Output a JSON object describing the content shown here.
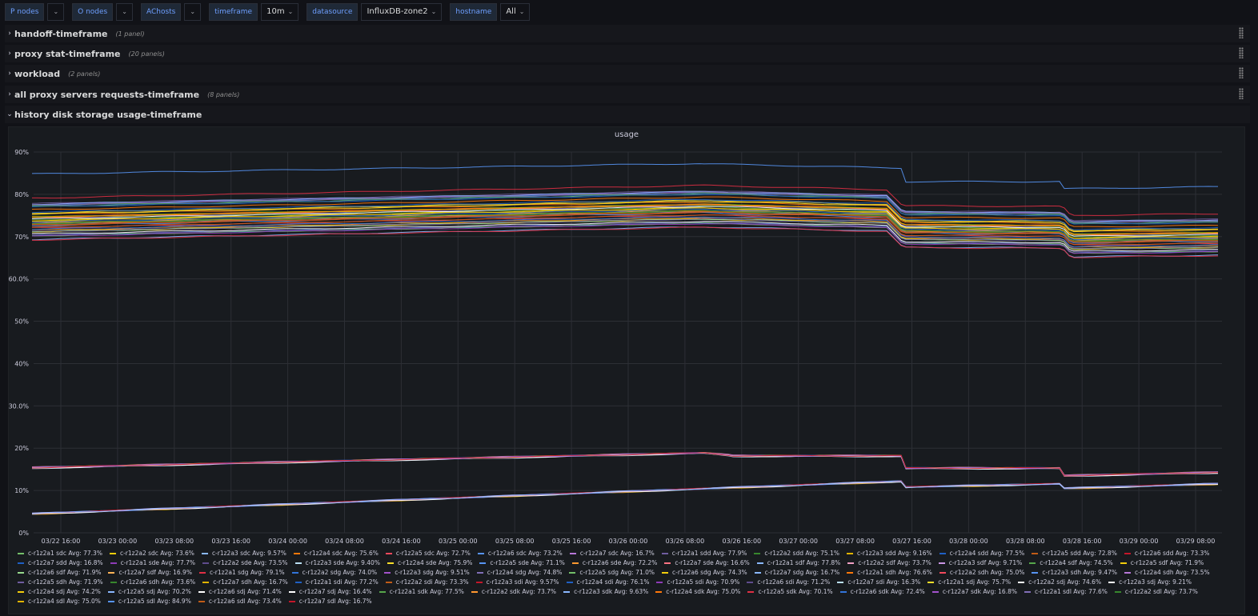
{
  "variables": [
    {
      "label": "P nodes",
      "value": ""
    },
    {
      "label": "O nodes",
      "value": ""
    },
    {
      "label": "AChosts",
      "value": ""
    },
    {
      "label": "timeframe",
      "value": "10m"
    },
    {
      "label": "datasource",
      "value": "InfluxDB-zone2"
    },
    {
      "label": "hostname",
      "value": "All"
    }
  ],
  "rows": [
    {
      "title": "handoff-timeframe",
      "count": "(1 panel)",
      "collapsed": true
    },
    {
      "title": "proxy stat-timeframe",
      "count": "(20 panels)",
      "collapsed": true
    },
    {
      "title": "workload",
      "count": "(2 panels)",
      "collapsed": true
    },
    {
      "title": "all proxy servers requests-timeframe",
      "count": "(8 panels)",
      "collapsed": true
    },
    {
      "title": "history disk storage usage-timeframe",
      "count": "",
      "collapsed": false
    }
  ],
  "panel": {
    "title": "usage"
  },
  "chart_data": {
    "type": "line",
    "title": "usage",
    "x_ticks": [
      "03/22 16:00",
      "03/23 00:00",
      "03/23 08:00",
      "03/23 16:00",
      "03/24 00:00",
      "03/24 08:00",
      "03/24 16:00",
      "03/25 00:00",
      "03/25 08:00",
      "03/25 16:00",
      "03/26 00:00",
      "03/26 08:00",
      "03/26 16:00",
      "03/27 00:00",
      "03/27 08:00",
      "03/27 16:00",
      "03/28 00:00",
      "03/28 08:00",
      "03/28 16:00",
      "03/29 00:00",
      "03/29 08:00"
    ],
    "y_ticks": [
      "0%",
      "10%",
      "20%",
      "30.0%",
      "40%",
      "50%",
      "60.0%",
      "70%",
      "80%",
      "90%"
    ],
    "ylim": [
      0,
      90
    ],
    "grid": true,
    "legend_position": "bottom",
    "legend": [
      {
        "name": "c-r1z2a1 sdc",
        "avg": "Avg: 77.3%",
        "color": "#73bf69"
      },
      {
        "name": "c-r1z2a2 sdc",
        "avg": "Avg: 73.6%",
        "color": "#f2cc0c"
      },
      {
        "name": "c-r1z2a3 sdc",
        "avg": "Avg: 9.57%",
        "color": "#8ab8ff"
      },
      {
        "name": "c-r1z2a4 sdc",
        "avg": "Avg: 75.6%",
        "color": "#ff780a"
      },
      {
        "name": "c-r1z2a5 sdc",
        "avg": "Avg: 72.7%",
        "color": "#f2495c"
      },
      {
        "name": "c-r1z2a6 sdc",
        "avg": "Avg: 73.2%",
        "color": "#5794f2"
      },
      {
        "name": "c-r1z2a7 sdc",
        "avg": "Avg: 16.7%",
        "color": "#b877d9"
      },
      {
        "name": "c-r1z2a1 sdd",
        "avg": "Avg: 77.9%",
        "color": "#705da0"
      },
      {
        "name": "c-r1z2a2 sdd",
        "avg": "Avg: 75.1%",
        "color": "#37872d"
      },
      {
        "name": "c-r1z2a3 sdd",
        "avg": "Avg: 9.16%",
        "color": "#e0b400"
      },
      {
        "name": "c-r1z2a4 sdd",
        "avg": "Avg: 77.5%",
        "color": "#1f60c4"
      },
      {
        "name": "c-r1z2a5 sdd",
        "avg": "Avg: 72.8%",
        "color": "#c15c17"
      },
      {
        "name": "c-r1z2a6 sdd",
        "avg": "Avg: 73.3%",
        "color": "#c4162a"
      },
      {
        "name": "c-r1z2a7 sdd",
        "avg": "Avg: 16.8%",
        "color": "#1f60c4"
      },
      {
        "name": "c-r1z2a1 sde",
        "avg": "Avg: 77.7%",
        "color": "#8f3bb8"
      },
      {
        "name": "c-r1z2a2 sde",
        "avg": "Avg: 73.5%",
        "color": "#5f4c8e"
      },
      {
        "name": "c-r1z2a3 sde",
        "avg": "Avg: 9.40%",
        "color": "#badff4"
      },
      {
        "name": "c-r1z2a4 sde",
        "avg": "Avg: 75.9%",
        "color": "#fade2a"
      },
      {
        "name": "c-r1z2a5 sde",
        "avg": "Avg: 71.1%",
        "color": "#5794f2"
      },
      {
        "name": "c-r1z2a6 sde",
        "avg": "Avg: 72.2%",
        "color": "#ff9830"
      },
      {
        "name": "c-r1z2a7 sde",
        "avg": "Avg: 16.6%",
        "color": "#ff7383"
      },
      {
        "name": "c-r1z2a1 sdf",
        "avg": "Avg: 77.8%",
        "color": "#8ab8ff"
      },
      {
        "name": "c-r1z2a2 sdf",
        "avg": "Avg: 73.7%",
        "color": "#f2a0c5"
      },
      {
        "name": "c-r1z2a3 sdf",
        "avg": "Avg: 9.71%",
        "color": "#ca95e5"
      },
      {
        "name": "c-r1z2a4 sdf",
        "avg": "Avg: 74.5%",
        "color": "#56a64b"
      },
      {
        "name": "c-r1z2a5 sdf",
        "avg": "Avg: 71.9%",
        "color": "#f2cc0c"
      },
      {
        "name": "c-r1z2a6 sdf",
        "avg": "Avg: 71.9%",
        "color": "#96d98d"
      },
      {
        "name": "c-r1z2a7 sdf",
        "avg": "Avg: 16.9%",
        "color": "#ffb357"
      },
      {
        "name": "c-r1z2a1 sdg",
        "avg": "Avg: 79.1%",
        "color": "#e02f44"
      },
      {
        "name": "c-r1z2a2 sdg",
        "avg": "Avg: 74.0%",
        "color": "#3274d9"
      },
      {
        "name": "c-r1z2a3 sdg",
        "avg": "Avg: 9.51%",
        "color": "#a352cc"
      },
      {
        "name": "c-r1z2a4 sdg",
        "avg": "Avg: 74.8%",
        "color": "#806eb7"
      },
      {
        "name": "c-r1z2a5 sdg",
        "avg": "Avg: 71.0%",
        "color": "#73bf69"
      },
      {
        "name": "c-r1z2a6 sdg",
        "avg": "Avg: 74.3%",
        "color": "#f2cc0c"
      },
      {
        "name": "c-r1z2a7 sdg",
        "avg": "Avg: 16.7%",
        "color": "#8ab8ff"
      },
      {
        "name": "c-r1z2a1 sdh",
        "avg": "Avg: 76.6%",
        "color": "#ff780a"
      },
      {
        "name": "c-r1z2a2 sdh",
        "avg": "Avg: 75.0%",
        "color": "#f2495c"
      },
      {
        "name": "c-r1z2a3 sdh",
        "avg": "Avg: 9.47%",
        "color": "#5794f2"
      },
      {
        "name": "c-r1z2a4 sdh",
        "avg": "Avg: 73.5%",
        "color": "#b877d9"
      },
      {
        "name": "c-r1z2a5 sdh",
        "avg": "Avg: 71.9%",
        "color": "#705da0"
      },
      {
        "name": "c-r1z2a6 sdh",
        "avg": "Avg: 73.6%",
        "color": "#37872d"
      },
      {
        "name": "c-r1z2a7 sdh",
        "avg": "Avg: 16.7%",
        "color": "#e0b400"
      },
      {
        "name": "c-r1z2a1 sdi",
        "avg": "Avg: 77.2%",
        "color": "#1f60c4"
      },
      {
        "name": "c-r1z2a2 sdi",
        "avg": "Avg: 73.3%",
        "color": "#c15c17"
      },
      {
        "name": "c-r1z2a3 sdi",
        "avg": "Avg: 9.57%",
        "color": "#c4162a"
      },
      {
        "name": "c-r1z2a4 sdi",
        "avg": "Avg: 76.1%",
        "color": "#1f60c4"
      },
      {
        "name": "c-r1z2a5 sdi",
        "avg": "Avg: 70.9%",
        "color": "#8f3bb8"
      },
      {
        "name": "c-r1z2a6 sdi",
        "avg": "Avg: 71.2%",
        "color": "#5f4c8e"
      },
      {
        "name": "c-r1z2a7 sdi",
        "avg": "Avg: 16.3%",
        "color": "#badff4"
      },
      {
        "name": "c-r1z2a1 sdj",
        "avg": "Avg: 75.7%",
        "color": "#fade2a"
      },
      {
        "name": "c-r1z2a2 sdj",
        "avg": "Avg: 74.6%",
        "color": "#ffffff"
      },
      {
        "name": "c-r1z2a3 sdj",
        "avg": "Avg: 9.21%",
        "color": "#ffffff"
      },
      {
        "name": "c-r1z2a4 sdj",
        "avg": "Avg: 74.2%",
        "color": "#f2cc0c"
      },
      {
        "name": "c-r1z2a5 sdj",
        "avg": "Avg: 70.2%",
        "color": "#8ab8ff"
      },
      {
        "name": "c-r1z2a6 sdj",
        "avg": "Avg: 71.4%",
        "color": "#ffffff"
      },
      {
        "name": "c-r1z2a7 sdj",
        "avg": "Avg: 16.4%",
        "color": "#ffffff"
      },
      {
        "name": "c-r1z2a1 sdk",
        "avg": "Avg: 77.5%",
        "color": "#56a64b"
      },
      {
        "name": "c-r1z2a2 sdk",
        "avg": "Avg: 73.7%",
        "color": "#ff9830"
      },
      {
        "name": "c-r1z2a3 sdk",
        "avg": "Avg: 9.63%",
        "color": "#8ab8ff"
      },
      {
        "name": "c-r1z2a4 sdk",
        "avg": "Avg: 75.0%",
        "color": "#ff780a"
      },
      {
        "name": "c-r1z2a5 sdk",
        "avg": "Avg: 70.1%",
        "color": "#e02f44"
      },
      {
        "name": "c-r1z2a6 sdk",
        "avg": "Avg: 72.4%",
        "color": "#3274d9"
      },
      {
        "name": "c-r1z2a7 sdk",
        "avg": "Avg: 16.8%",
        "color": "#a352cc"
      },
      {
        "name": "c-r1z2a1 sdl",
        "avg": "Avg: 77.6%",
        "color": "#806eb7"
      },
      {
        "name": "c-r1z2a2 sdl",
        "avg": "Avg: 73.7%",
        "color": "#37872d"
      },
      {
        "name": "c-r1z2a4 sdl",
        "avg": "Avg: 75.0%",
        "color": "#e0b400"
      },
      {
        "name": "c-r1z2a5 sdl",
        "avg": "Avg: 84.9%",
        "color": "#5794f2"
      },
      {
        "name": "c-r1z2a6 sdl",
        "avg": "Avg: 73.4%",
        "color": "#c15c17"
      },
      {
        "name": "c-r1z2a7 sdl",
        "avg": "Avg: 16.7%",
        "color": "#c4162a"
      }
    ]
  }
}
